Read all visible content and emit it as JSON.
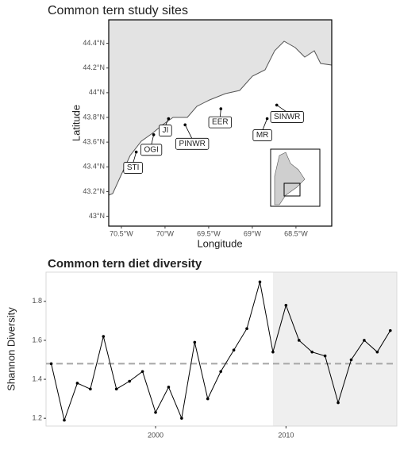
{
  "chart_data": [
    {
      "type": "map",
      "title": "Common tern study sites",
      "xlabel": "Longitude",
      "ylabel": "Latitude",
      "labels": [
        "STI",
        "OGI",
        "JI",
        "PINWR",
        "EER",
        "MR",
        "SINWR"
      ],
      "x": [
        -70.33,
        -70.13,
        -69.96,
        -69.77,
        -69.36,
        -68.83,
        -68.72
      ],
      "y": [
        43.52,
        43.66,
        43.79,
        43.74,
        43.87,
        43.79,
        43.9
      ],
      "xlim": [
        -70.645,
        -68.09
      ],
      "ylim": [
        42.92,
        44.59
      ],
      "xticks": [
        {
          "value": -70.5,
          "label": "70.5°W"
        },
        {
          "value": -70,
          "label": "70°W"
        },
        {
          "value": -69.5,
          "label": "69.5°W"
        },
        {
          "value": -69,
          "label": "69°W"
        },
        {
          "value": -68.5,
          "label": "68.5°W"
        }
      ],
      "yticks": [
        {
          "value": 43,
          "label": "43°N"
        },
        {
          "value": 43.2,
          "label": "43.2°N"
        },
        {
          "value": 43.4,
          "label": "43.4°N"
        },
        {
          "value": 43.6,
          "label": "43.6°N"
        },
        {
          "value": 43.8,
          "label": "43.8°N"
        },
        {
          "value": 44,
          "label": "44°N"
        },
        {
          "value": 44.2,
          "label": "44.2°N"
        },
        {
          "value": 44.4,
          "label": "44.4°N"
        }
      ],
      "color": "#000000"
    },
    {
      "type": "line",
      "title": "Common tern diet diversity",
      "ylabel": "Shannon Diversity",
      "x": [
        1992,
        1993,
        1994,
        1995,
        1996,
        1997,
        1998,
        1999,
        2000,
        2001,
        2002,
        2003,
        2004,
        2005,
        2006,
        2007,
        2008,
        2009,
        2010,
        2011,
        2012,
        2013,
        2014,
        2015,
        2016,
        2017,
        2018
      ],
      "values": [
        1.48,
        1.19,
        1.38,
        1.35,
        1.62,
        1.35,
        1.39,
        1.44,
        1.23,
        1.36,
        1.2,
        1.59,
        1.3,
        1.44,
        1.55,
        1.66,
        1.9,
        1.54,
        1.78,
        1.6,
        1.54,
        1.52,
        1.28,
        1.5,
        1.6,
        1.54,
        1.65
      ],
      "xlim": [
        1991.6,
        2018.5
      ],
      "ylim": [
        1.16,
        1.95
      ],
      "xticks": [
        2000,
        2010
      ],
      "yticks": [
        1.2,
        1.4,
        1.6,
        1.8
      ],
      "reference_line": 1.48,
      "shade_from": 2009,
      "color": "#000000"
    }
  ]
}
